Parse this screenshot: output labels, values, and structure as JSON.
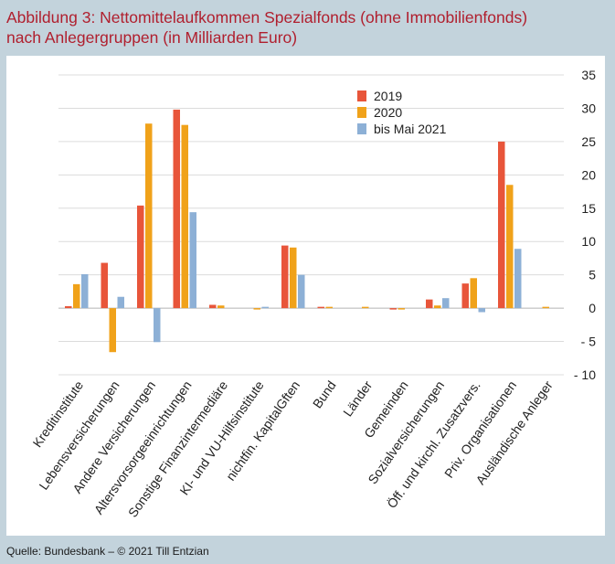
{
  "title_line1": "Abbildung 3: Nettomittelaufkommen Spezialfonds (ohne Immobilienfonds)",
  "title_line2": "nach Anlegergruppen (in Milliarden Euro)",
  "source": "Quelle: Bundesbank – © 2021 Till Entzian",
  "chart_data": {
    "type": "bar",
    "title": "",
    "categories": [
      "Kreditinstitute",
      "Lebensversicherungen",
      "Andere Versicherungen",
      "Altersvorsorgeeinrichtungen",
      "Sonstige Finanzintermediäre",
      "KI- und VU-Hilfsinstitute",
      "nichtfin. KapitalGften",
      "Bund",
      "Länder",
      "Gemeinden",
      "Sozialversicherungen",
      "Öff. und kirchl. Zusatzvers.",
      "Priv. Organisationen",
      "Ausländische Anleger"
    ],
    "series": [
      {
        "name": "2019",
        "color": "#e8553a",
        "values": [
          0.3,
          6.8,
          15.4,
          29.8,
          0.5,
          0.0,
          9.4,
          0.2,
          0.0,
          -0.2,
          1.3,
          3.7,
          25.0,
          0.0
        ]
      },
      {
        "name": "2020",
        "color": "#f0a21a",
        "values": [
          3.6,
          -6.6,
          27.7,
          27.5,
          0.4,
          -0.2,
          9.1,
          0.2,
          0.2,
          -0.2,
          0.4,
          4.5,
          18.5,
          0.2
        ]
      },
      {
        "name": "bis Mai 2021",
        "color": "#8db0d6",
        "values": [
          5.1,
          1.7,
          -5.1,
          14.4,
          0.0,
          0.2,
          5.0,
          0.0,
          0.0,
          0.0,
          1.5,
          -0.6,
          8.9,
          0.0
        ]
      }
    ],
    "yticks": [
      35,
      30,
      25,
      20,
      15,
      10,
      5,
      0,
      -5,
      -10
    ],
    "ytick_labels": [
      "35",
      "30",
      "25",
      "20",
      "15",
      "10",
      "5",
      "0",
      "- 5",
      "- 10"
    ],
    "ylim": [
      -10,
      35
    ],
    "xlabel": "",
    "ylabel": "",
    "grid": true,
    "legend_position": "top-right"
  }
}
